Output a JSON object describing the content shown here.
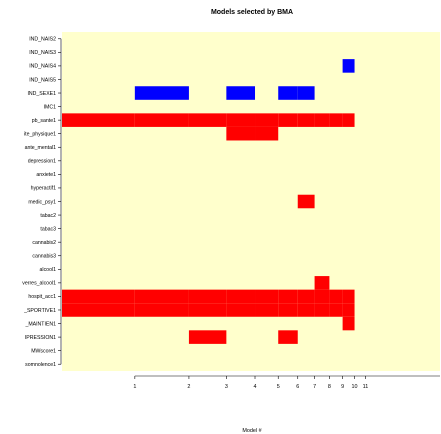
{
  "chart_data": {
    "type": "heatmap",
    "title": "Models selected by BMA",
    "xlabel": "Model #",
    "ylabel": "",
    "x_scale": "log",
    "x_ticks": [
      "1",
      "2",
      "3",
      "4",
      "5",
      "6",
      "7",
      "8",
      "9",
      "10",
      "11"
    ],
    "model_edges": [
      0,
      1,
      2,
      3,
      4,
      5,
      6,
      7,
      8,
      9,
      10,
      11
    ],
    "variables": [
      "IND_NAIS2",
      "IND_NAIS3",
      "IND_NAIS4",
      "IND_NAIS5",
      "IND_SEXE1",
      "IMC1",
      "pb_sante1",
      "ite_physique1",
      "ante_mental1",
      "depression1",
      "anxiete1",
      "hyperactif1",
      "medic_psy1",
      "tabac2",
      "tabac3",
      "cannabis2",
      "cannabis3",
      "alcool1",
      "verres_alcool1",
      "hospit_acc1",
      "_SPORTIVE1",
      "_MAINTIEN1",
      "IPRESSION1",
      "MWscore1",
      "somnolence1"
    ],
    "colors": {
      "background": "#ffffcc",
      "positive": "#ff0000",
      "negative": "#0000ff"
    },
    "cells": [
      {
        "variable": "IND_NAIS4",
        "models": [
          10
        ],
        "sign": "negative"
      },
      {
        "variable": "IND_SEXE1",
        "models": [
          2,
          4,
          6,
          7
        ],
        "sign": "negative"
      },
      {
        "variable": "pb_sante1",
        "models": [
          1,
          2,
          3,
          4,
          5,
          6,
          7,
          8,
          9,
          10
        ],
        "sign": "positive"
      },
      {
        "variable": "ite_physique1",
        "models": [
          4,
          5
        ],
        "sign": "positive"
      },
      {
        "variable": "medic_psy1",
        "models": [
          7
        ],
        "sign": "positive"
      },
      {
        "variable": "verres_alcool1",
        "models": [
          8
        ],
        "sign": "positive"
      },
      {
        "variable": "hospit_acc1",
        "models": [
          1,
          2,
          3,
          4,
          5,
          6,
          7,
          8,
          9,
          10
        ],
        "sign": "positive"
      },
      {
        "variable": "_SPORTIVE1",
        "models": [
          1,
          2,
          3,
          4,
          5,
          6,
          7,
          8,
          9,
          10
        ],
        "sign": "positive"
      },
      {
        "variable": "_MAINTIEN1",
        "models": [
          10
        ],
        "sign": "positive"
      },
      {
        "variable": "IPRESSION1",
        "models": [
          3,
          6
        ],
        "sign": "positive"
      }
    ]
  }
}
